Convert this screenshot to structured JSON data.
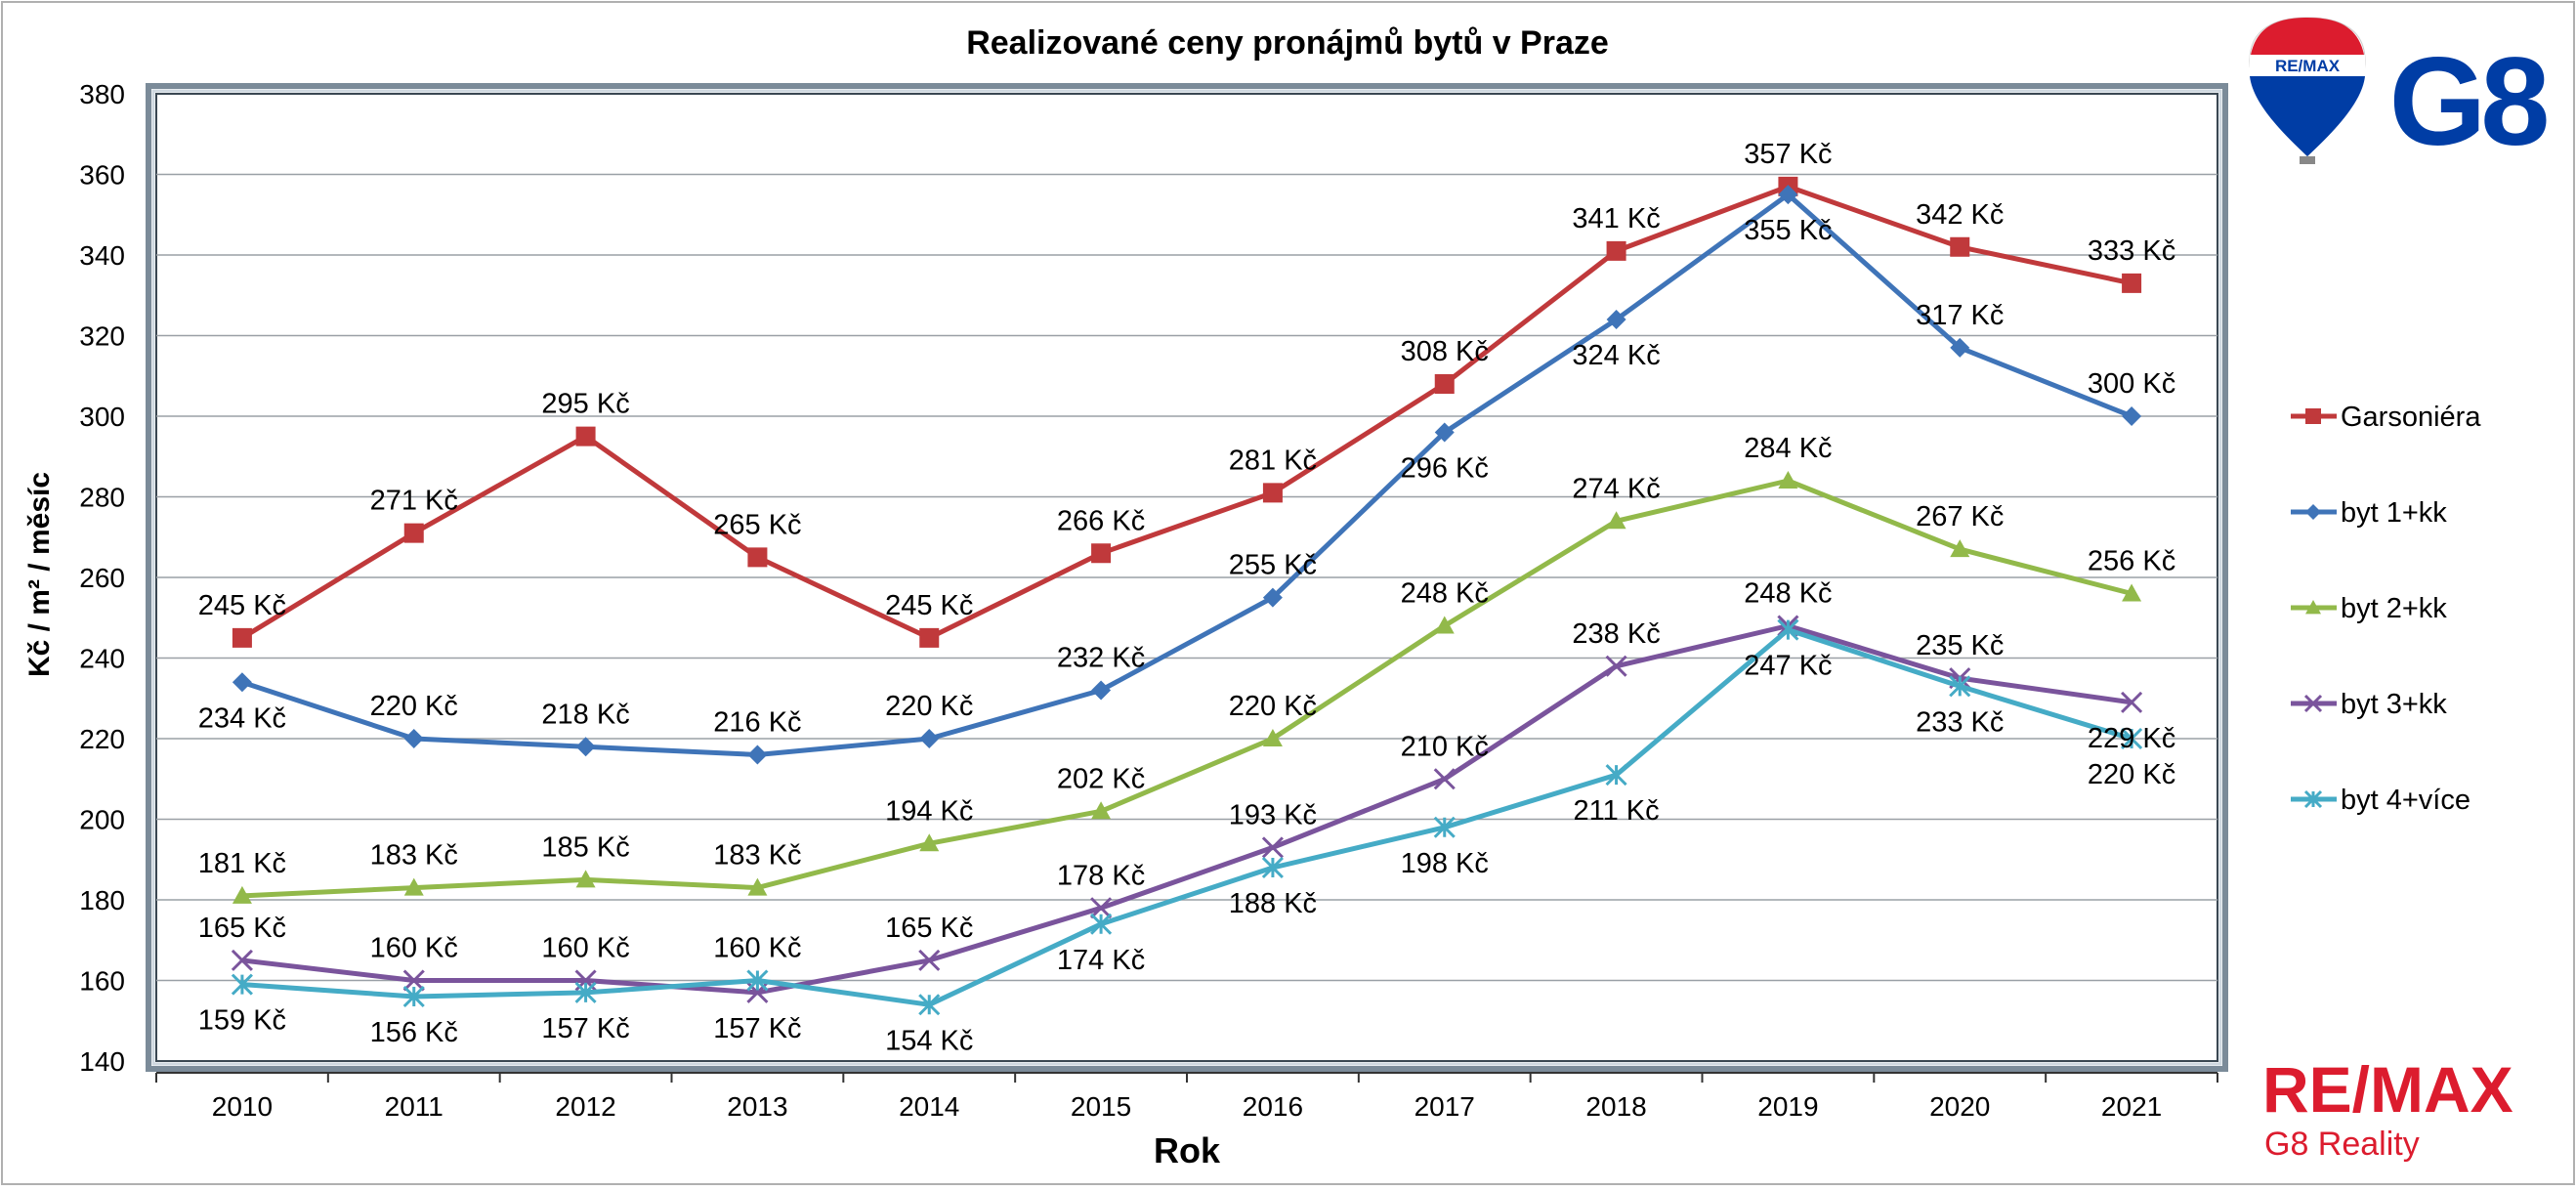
{
  "chart_data": {
    "type": "line",
    "title": "Realizované ceny pronájmů bytů v Praze",
    "xlabel": "Rok",
    "ylabel": "Kč / m² / měsíc",
    "ylim": [
      140,
      380
    ],
    "ytick_step": 20,
    "y_ticks": [
      "140",
      "160",
      "180",
      "200",
      "220",
      "240",
      "260",
      "280",
      "300",
      "320",
      "340",
      "360",
      "380"
    ],
    "grid": true,
    "legend_position": "right",
    "value_suffix": " Kč",
    "categories": [
      "2010",
      "2011",
      "2012",
      "2013",
      "2014",
      "2015",
      "2016",
      "2017",
      "2018",
      "2019",
      "2020",
      "2021"
    ],
    "series": [
      {
        "name": "Garsoniéra",
        "color": "#c0393b",
        "marker": "square",
        "values": [
          245,
          271,
          295,
          265,
          245,
          266,
          281,
          308,
          341,
          357,
          342,
          333
        ]
      },
      {
        "name": "byt 1+kk",
        "color": "#3f74b8",
        "marker": "diamond",
        "values": [
          234,
          220,
          218,
          216,
          220,
          232,
          255,
          296,
          324,
          355,
          317,
          300
        ]
      },
      {
        "name": "byt 2+kk",
        "color": "#92b94a",
        "marker": "triangle",
        "values": [
          181,
          183,
          185,
          183,
          194,
          202,
          220,
          248,
          274,
          284,
          267,
          256
        ]
      },
      {
        "name": "byt 3+kk",
        "color": "#7a549c",
        "marker": "x",
        "values": [
          165,
          160,
          160,
          157,
          165,
          178,
          193,
          210,
          238,
          248,
          235,
          229
        ]
      },
      {
        "name": "byt 4+více",
        "color": "#45abc6",
        "marker": "star",
        "values": [
          159,
          156,
          157,
          160,
          154,
          174,
          188,
          198,
          211,
          247,
          233,
          220
        ]
      }
    ]
  },
  "logo_top": {
    "brand": "RE/MAX",
    "text": "G8"
  },
  "logo_bottom": {
    "brand": "RE/MAX",
    "subtitle": "G8 Reality"
  }
}
